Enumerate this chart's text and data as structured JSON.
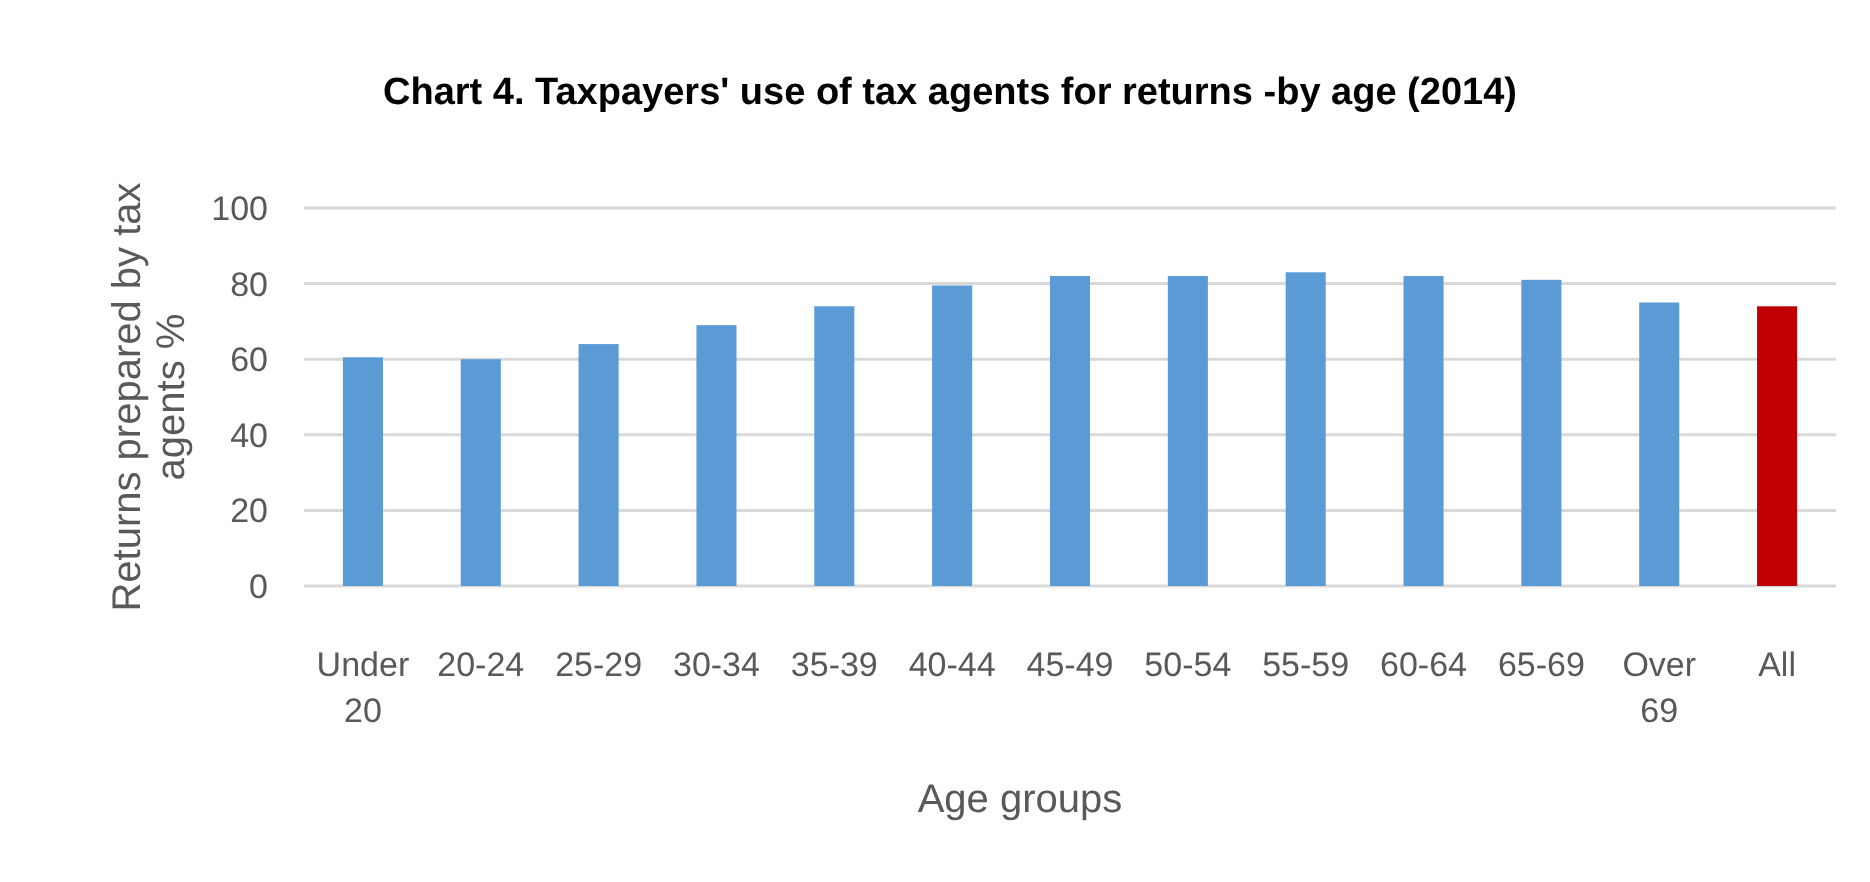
{
  "chart_data": {
    "type": "bar",
    "title": "Chart 4. Taxpayers' use of tax agents for returns -by age (2014)",
    "xlabel": "Age groups",
    "ylabel": "Returns prepared by tax agents %",
    "categories": [
      "Under 20",
      "20-24",
      "25-29",
      "30-34",
      "35-39",
      "40-44",
      "45-49",
      "50-54",
      "55-59",
      "60-64",
      "65-69",
      "Over 69",
      "All"
    ],
    "values": [
      60.5,
      60,
      64,
      69,
      74,
      79.5,
      82,
      82,
      83,
      82,
      81,
      75,
      74
    ],
    "colors": [
      "#5b9bd5",
      "#5b9bd5",
      "#5b9bd5",
      "#5b9bd5",
      "#5b9bd5",
      "#5b9bd5",
      "#5b9bd5",
      "#5b9bd5",
      "#5b9bd5",
      "#5b9bd5",
      "#5b9bd5",
      "#5b9bd5",
      "#c00000"
    ],
    "ylim": [
      0,
      100
    ],
    "yticks": [
      0,
      20,
      40,
      60,
      80,
      100
    ],
    "grid": true
  }
}
